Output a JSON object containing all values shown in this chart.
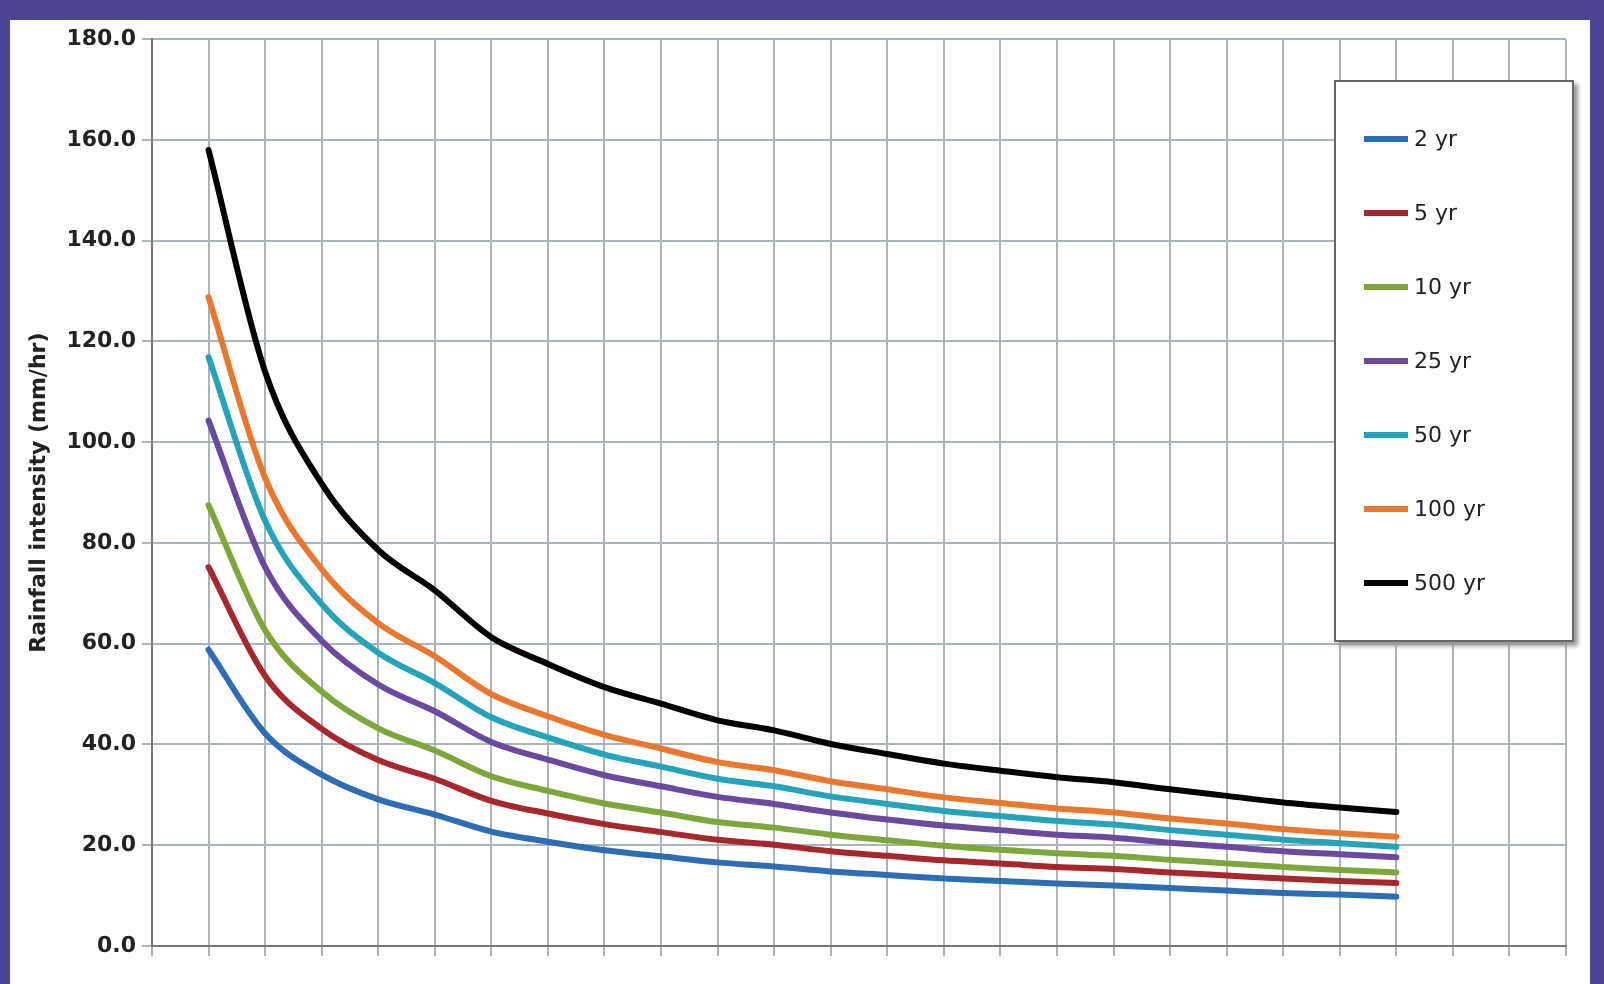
{
  "chart_data": {
    "type": "line",
    "ylabel": "Rainfall intensity (mm/hr)",
    "categories": [
      null,
      null,
      null,
      null,
      null,
      null,
      null,
      null,
      null,
      null,
      null,
      null,
      null,
      null,
      null,
      null,
      null,
      null,
      null,
      null,
      null,
      null,
      null,
      null,
      null,
      null
    ],
    "series": [
      {
        "name": "2 yr",
        "color": "#2e6db4",
        "values": [
          null,
          58.8,
          42.2,
          34.0,
          29.1,
          26.1,
          22.7,
          20.7,
          19.0,
          17.8,
          16.6,
          15.8,
          14.8,
          14.1,
          13.4,
          12.9,
          12.4,
          12.0,
          11.5,
          11.0,
          10.5,
          10.2,
          9.8,
          null,
          null,
          null
        ]
      },
      {
        "name": "5 yr",
        "color": "#a5282f",
        "values": [
          null,
          75.2,
          53.6,
          43.1,
          36.9,
          33.2,
          28.8,
          26.3,
          24.2,
          22.6,
          21.1,
          20.1,
          18.8,
          17.9,
          17.0,
          16.4,
          15.7,
          15.3,
          14.6,
          14.0,
          13.4,
          12.9,
          12.5,
          null,
          null,
          null
        ]
      },
      {
        "name": "10 yr",
        "color": "#7fa63a",
        "values": [
          null,
          87.5,
          62.7,
          50.5,
          43.2,
          38.8,
          33.7,
          30.8,
          28.3,
          26.5,
          24.6,
          23.5,
          22.1,
          21.0,
          19.9,
          19.1,
          18.4,
          17.9,
          17.1,
          16.4,
          15.7,
          15.1,
          14.6,
          null,
          null,
          null
        ]
      },
      {
        "name": "25 yr",
        "color": "#6a4a9e",
        "values": [
          null,
          104.3,
          75.2,
          60.6,
          51.9,
          46.6,
          40.5,
          37.0,
          33.9,
          31.7,
          29.6,
          28.2,
          26.5,
          25.1,
          23.9,
          23.0,
          22.1,
          21.5,
          20.5,
          19.7,
          18.8,
          18.2,
          17.6,
          null,
          null,
          null
        ]
      },
      {
        "name": "50 yr",
        "color": "#25a3b8",
        "values": [
          null,
          116.9,
          84.4,
          67.9,
          58.2,
          52.2,
          45.4,
          41.4,
          38.0,
          35.6,
          33.2,
          31.7,
          29.7,
          28.2,
          26.8,
          25.8,
          24.8,
          24.1,
          23.0,
          22.1,
          21.1,
          20.4,
          19.7,
          null,
          null,
          null
        ]
      },
      {
        "name": "100 yr",
        "color": "#e8782e",
        "values": [
          null,
          128.8,
          92.9,
          74.8,
          64.1,
          57.5,
          50.0,
          45.6,
          41.9,
          39.2,
          36.5,
          34.9,
          32.7,
          31.1,
          29.5,
          28.4,
          27.3,
          26.5,
          25.3,
          24.3,
          23.2,
          22.4,
          21.7,
          null,
          null,
          null
        ]
      },
      {
        "name": "500 yr",
        "color": "#000000",
        "values": [
          null,
          158.0,
          114.0,
          91.8,
          78.6,
          70.6,
          61.3,
          56.0,
          51.4,
          48.1,
          44.8,
          42.8,
          40.1,
          38.1,
          36.2,
          34.8,
          33.5,
          32.5,
          31.1,
          29.8,
          28.5,
          27.5,
          26.6,
          null,
          null,
          null
        ]
      }
    ],
    "ylim": [
      0,
      180
    ],
    "yticks": [
      {
        "value": 0,
        "label": "0.0"
      },
      {
        "value": 20,
        "label": "20.0"
      },
      {
        "value": 40,
        "label": "40.0"
      },
      {
        "value": 60,
        "label": "60.0"
      },
      {
        "value": 80,
        "label": "80.0"
      },
      {
        "value": 100,
        "label": "100.0"
      },
      {
        "value": 120,
        "label": "120.0"
      },
      {
        "value": 140,
        "label": "140.0"
      },
      {
        "value": 160,
        "label": "160.0"
      },
      {
        "value": 180,
        "label": "180.0"
      }
    ],
    "grid": true,
    "legend": "top right",
    "tick_labels": "y",
    "marker": "none",
    "line_style": "solid"
  }
}
